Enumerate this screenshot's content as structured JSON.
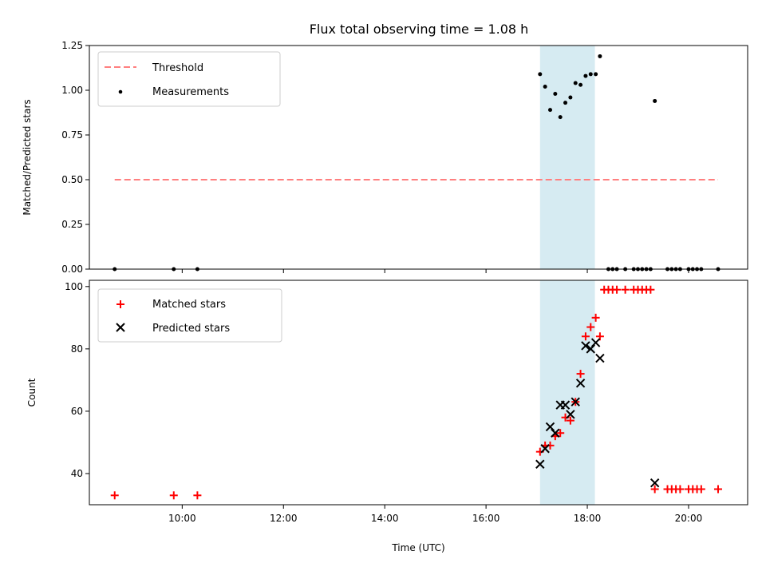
{
  "figure_title": "Flux total observing time = 1.08 h",
  "colors": {
    "threshold": "#ff7f7f",
    "measurement": "#000000",
    "matched": "#ff0000",
    "predicted": "#000000",
    "span": "#add8e6"
  },
  "chart_data": [
    {
      "type": "scatter",
      "panel": "top",
      "title": "Flux total observing time = 1.08 h",
      "xlabel": "",
      "ylabel": "Matched/Predicted stars",
      "xlim": [
        "08:10",
        "21:10"
      ],
      "ylim": [
        0,
        1.25
      ],
      "yticks": [
        "0.00",
        "0.25",
        "0.50",
        "0.75",
        "1.00",
        "1.25"
      ],
      "highlight_span": [
        "17:04",
        "18:09"
      ],
      "legend_location": "upper-left",
      "series": [
        {
          "name": "Threshold",
          "style": "dashed-line",
          "color": "#ff7f7f",
          "x": [
            "08:40",
            "20:35"
          ],
          "y": [
            0.5,
            0.5
          ]
        },
        {
          "name": "Measurements",
          "style": "dot",
          "color": "#000000",
          "x": [
            "08:40",
            "09:50",
            "10:18",
            "17:04",
            "17:10",
            "17:16",
            "17:22",
            "17:28",
            "17:34",
            "17:40",
            "17:46",
            "17:52",
            "17:58",
            "18:04",
            "18:10",
            "18:15",
            "18:25",
            "18:30",
            "18:35",
            "18:45",
            "18:55",
            "19:00",
            "19:05",
            "19:10",
            "19:15",
            "19:35",
            "19:40",
            "19:45",
            "19:50",
            "20:00",
            "20:05",
            "20:10",
            "20:15",
            "20:35",
            "19:20"
          ],
          "y": [
            0,
            0,
            0,
            1.09,
            1.02,
            0.89,
            0.98,
            0.85,
            0.93,
            0.96,
            1.04,
            1.03,
            1.08,
            1.09,
            1.09,
            1.19,
            0,
            0,
            0,
            0,
            0,
            0,
            0,
            0,
            0,
            0,
            0,
            0,
            0,
            0,
            0,
            0,
            0,
            0,
            0.94
          ]
        }
      ]
    },
    {
      "type": "scatter",
      "panel": "bottom",
      "xlabel": "Time (UTC)",
      "ylabel": "Count",
      "xlim": [
        "08:10",
        "21:10"
      ],
      "ylim": [
        30,
        102
      ],
      "xticks": [
        "10:00",
        "12:00",
        "14:00",
        "16:00",
        "18:00",
        "20:00"
      ],
      "yticks": [
        "40",
        "60",
        "80",
        "100"
      ],
      "highlight_span": [
        "17:04",
        "18:09"
      ],
      "legend_location": "upper-left",
      "series": [
        {
          "name": "Matched stars",
          "marker": "+",
          "color": "#ff0000",
          "x": [
            "08:40",
            "09:50",
            "10:18",
            "17:04",
            "17:10",
            "17:16",
            "17:22",
            "17:28",
            "17:34",
            "17:40",
            "17:46",
            "17:52",
            "17:58",
            "18:04",
            "18:10",
            "18:15",
            "18:20",
            "18:25",
            "18:30",
            "18:35",
            "18:45",
            "18:55",
            "19:00",
            "19:05",
            "19:10",
            "19:15",
            "19:20",
            "19:35",
            "19:40",
            "19:45",
            "19:50",
            "20:00",
            "20:05",
            "20:10",
            "20:15",
            "20:35"
          ],
          "y": [
            33,
            33,
            33,
            47,
            49,
            49,
            52,
            53,
            58,
            57,
            63,
            72,
            84,
            87,
            90,
            84,
            99,
            99,
            99,
            99,
            99,
            99,
            99,
            99,
            99,
            99,
            35,
            35,
            35,
            35,
            35,
            35,
            35,
            35,
            35,
            35
          ]
        },
        {
          "name": "Predicted stars",
          "marker": "x",
          "color": "#000000",
          "x": [
            "17:04",
            "17:10",
            "17:16",
            "17:22",
            "17:28",
            "17:34",
            "17:40",
            "17:46",
            "17:52",
            "17:58",
            "18:04",
            "18:10",
            "18:15",
            "19:20"
          ],
          "y": [
            43,
            48,
            55,
            53,
            62,
            62,
            59,
            63,
            69,
            81,
            80,
            82,
            77,
            37
          ]
        }
      ]
    }
  ]
}
